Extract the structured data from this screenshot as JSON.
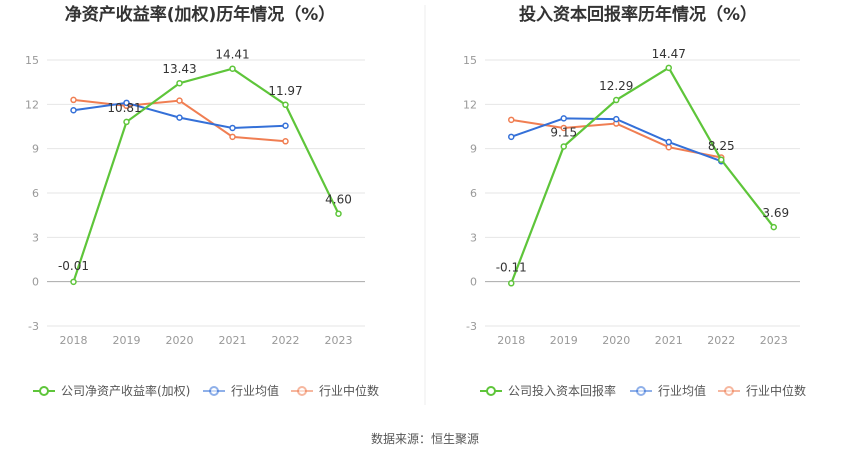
{
  "source": "数据来源：恒生聚源",
  "chart_data": [
    {
      "type": "line",
      "title": "净资产收益率(加权)历年情况（%）",
      "categories": [
        "2018",
        "2019",
        "2020",
        "2021",
        "2022",
        "2023"
      ],
      "ylim": [
        -3,
        15
      ],
      "yticks": [
        -3,
        0,
        3,
        6,
        9,
        12,
        15
      ],
      "grid": true,
      "legend_position": "bottom-left",
      "series": [
        {
          "name": "公司净资产收益率(加权)",
          "color": "#5ec53a",
          "values": [
            -0.01,
            10.81,
            13.43,
            14.41,
            11.97,
            4.6
          ],
          "labels": [
            "-0.01",
            "10.81",
            "13.43",
            "14.41",
            "11.97",
            "4.60"
          ]
        },
        {
          "name": "行业均值",
          "color": "#3470d8",
          "values": [
            11.6,
            12.1,
            11.1,
            10.4,
            10.55,
            null
          ]
        },
        {
          "name": "行业中位数",
          "color": "#f07e52",
          "values": [
            12.3,
            11.9,
            12.25,
            9.8,
            9.5,
            null
          ]
        }
      ]
    },
    {
      "type": "line",
      "title": "投入资本回报率历年情况（%）",
      "categories": [
        "2018",
        "2019",
        "2020",
        "2021",
        "2022",
        "2023"
      ],
      "ylim": [
        -3,
        15
      ],
      "yticks": [
        -3,
        0,
        3,
        6,
        9,
        12,
        15
      ],
      "grid": true,
      "legend_position": "bottom-left",
      "series": [
        {
          "name": "公司投入资本回报率",
          "color": "#5ec53a",
          "values": [
            -0.11,
            9.15,
            12.29,
            14.47,
            8.25,
            3.69
          ],
          "labels": [
            "-0.11",
            "9.15",
            "12.29",
            "14.47",
            "8.25",
            "3.69"
          ]
        },
        {
          "name": "行业均值",
          "color": "#3470d8",
          "values": [
            9.8,
            11.05,
            11.0,
            9.45,
            8.15,
            null
          ]
        },
        {
          "name": "行业中位数",
          "color": "#f07e52",
          "values": [
            10.95,
            10.4,
            10.7,
            9.1,
            8.4,
            null
          ]
        }
      ]
    }
  ]
}
